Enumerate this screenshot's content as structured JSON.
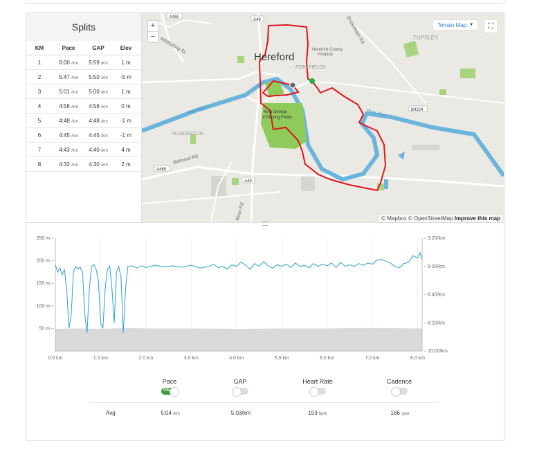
{
  "splits": {
    "title": "Splits",
    "columns": [
      "KM",
      "Pace",
      "GAP",
      "Elev"
    ],
    "rows": [
      {
        "km": "1",
        "pace": "6:00",
        "pace_unit": "/km",
        "gap": "5:59",
        "gap_unit": "/km",
        "elev": "1 m"
      },
      {
        "km": "2",
        "pace": "5:47",
        "pace_unit": "/km",
        "gap": "5:50",
        "gap_unit": "/km",
        "elev": "-5 m"
      },
      {
        "km": "3",
        "pace": "5:01",
        "pace_unit": "/km",
        "gap": "5:00",
        "gap_unit": "/km",
        "elev": "1 m"
      },
      {
        "km": "4",
        "pace": "4:56",
        "pace_unit": "/km",
        "gap": "4:56",
        "gap_unit": "/km",
        "elev": "0 m"
      },
      {
        "km": "5",
        "pace": "4:48",
        "pace_unit": "/km",
        "gap": "4:48",
        "gap_unit": "/km",
        "elev": "-1 m"
      },
      {
        "km": "6",
        "pace": "4:45",
        "pace_unit": "/km",
        "gap": "4:45",
        "gap_unit": "/km",
        "elev": "-1 m"
      },
      {
        "km": "7",
        "pace": "4:43",
        "pace_unit": "/km",
        "gap": "4:40",
        "gap_unit": "/km",
        "elev": "4 m"
      },
      {
        "km": "8",
        "pace": "4:32",
        "pace_unit": "/km",
        "gap": "4:30",
        "gap_unit": "/km",
        "elev": "2 m"
      }
    ]
  },
  "map": {
    "zoom_in": "+",
    "zoom_out": "−",
    "terrain_label": "Terrain Map",
    "attribution_text": "© Mapbox © OpenStreetMap",
    "improve_link": "Improve this map",
    "labels": {
      "hereford": "Hereford",
      "county_hospital_1": "Hereford County",
      "county_hospital_2": "Hospital",
      "portfields": "PORTFIELDS",
      "tupsley": "TUPSLEY",
      "hunderton": "HUNDERTON",
      "king_george_1": "King George",
      "king_george_2": "V Playing Fields",
      "a438": "A438",
      "a49_top": "A49",
      "a49_bottom": "A49",
      "a465": "A465",
      "b4224": "B4224",
      "whitefalling": "Whitfalling St",
      "bodenham": "Bodenham Rd",
      "belmont": "Belmont Rd",
      "ross": "Ross Rd",
      "river_wye_1": "River Wye",
      "river_wye_2": "River Wye"
    },
    "colors": {
      "route": "#e0141b",
      "river": "#6bb5dd",
      "park": "#8fcb5a",
      "start": "#1bb33c"
    }
  },
  "chart_data": {
    "type": "line",
    "xlabel": "",
    "x_ticks": [
      "0.0 km",
      "1.0 km",
      "2.0 km",
      "3.0 km",
      "4.0 km",
      "5.0 km",
      "6.0 km",
      "7.0 km",
      "8.0 km"
    ],
    "xlim": [
      0,
      8.1
    ],
    "elevation_ticks": [
      "250 m",
      "200 m",
      "150 m",
      "100 m",
      "50 m"
    ],
    "elevation_lim": [
      0,
      250
    ],
    "pace_ticks": [
      "3:20/km",
      "5:00/km",
      "6:40/km",
      "8:20/km",
      "10:00/km"
    ],
    "pace_lim_seconds": [
      200,
      600
    ],
    "series": [
      {
        "name": "Pace",
        "color": "#3ba7d6",
        "points": [
          [
            0.0,
            294
          ],
          [
            0.05,
            320
          ],
          [
            0.1,
            305
          ],
          [
            0.15,
            330
          ],
          [
            0.2,
            310
          ],
          [
            0.25,
            380
          ],
          [
            0.3,
            520
          ],
          [
            0.35,
            470
          ],
          [
            0.4,
            320
          ],
          [
            0.45,
            300
          ],
          [
            0.5,
            308
          ],
          [
            0.55,
            303
          ],
          [
            0.6,
            320
          ],
          [
            0.65,
            470
          ],
          [
            0.7,
            535
          ],
          [
            0.75,
            380
          ],
          [
            0.8,
            300
          ],
          [
            0.85,
            293
          ],
          [
            0.9,
            310
          ],
          [
            0.95,
            350
          ],
          [
            1.0,
            500
          ],
          [
            1.05,
            520
          ],
          [
            1.1,
            380
          ],
          [
            1.15,
            310
          ],
          [
            1.2,
            298
          ],
          [
            1.25,
            380
          ],
          [
            1.3,
            500
          ],
          [
            1.35,
            320
          ],
          [
            1.4,
            300
          ],
          [
            1.45,
            340
          ],
          [
            1.5,
            535
          ],
          [
            1.55,
            380
          ],
          [
            1.6,
            300
          ],
          [
            1.7,
            298
          ],
          [
            1.8,
            306
          ],
          [
            1.9,
            298
          ],
          [
            2.0,
            304
          ],
          [
            2.2,
            296
          ],
          [
            2.4,
            302
          ],
          [
            2.6,
            298
          ],
          [
            2.8,
            303
          ],
          [
            3.0,
            296
          ],
          [
            3.2,
            306
          ],
          [
            3.4,
            300
          ],
          [
            3.5,
            292
          ],
          [
            3.6,
            305
          ],
          [
            3.7,
            300
          ],
          [
            3.8,
            310
          ],
          [
            3.9,
            294
          ],
          [
            4.0,
            300
          ],
          [
            4.1,
            285
          ],
          [
            4.2,
            295
          ],
          [
            4.3,
            310
          ],
          [
            4.4,
            290
          ],
          [
            4.5,
            300
          ],
          [
            4.6,
            283
          ],
          [
            4.7,
            298
          ],
          [
            4.8,
            306
          ],
          [
            4.9,
            294
          ],
          [
            5.0,
            300
          ],
          [
            5.1,
            292
          ],
          [
            5.2,
            304
          ],
          [
            5.3,
            288
          ],
          [
            5.4,
            300
          ],
          [
            5.5,
            296
          ],
          [
            5.6,
            305
          ],
          [
            5.7,
            290
          ],
          [
            5.8,
            300
          ],
          [
            5.9,
            292
          ],
          [
            6.0,
            298
          ],
          [
            6.1,
            288
          ],
          [
            6.2,
            304
          ],
          [
            6.3,
            286
          ],
          [
            6.4,
            300
          ],
          [
            6.5,
            294
          ],
          [
            6.6,
            300
          ],
          [
            6.7,
            290
          ],
          [
            6.8,
            296
          ],
          [
            6.9,
            288
          ],
          [
            7.0,
            292
          ],
          [
            7.1,
            278
          ],
          [
            7.2,
            275
          ],
          [
            7.3,
            282
          ],
          [
            7.4,
            288
          ],
          [
            7.5,
            300
          ],
          [
            7.6,
            305
          ],
          [
            7.7,
            290
          ],
          [
            7.8,
            285
          ],
          [
            7.9,
            262
          ],
          [
            8.0,
            270
          ],
          [
            8.05,
            250
          ],
          [
            8.1,
            275
          ]
        ]
      },
      {
        "name": "Elevation",
        "color": "#d9d9d9",
        "points": [
          [
            0,
            49
          ],
          [
            0.5,
            50
          ],
          [
            1.0,
            49
          ],
          [
            1.5,
            51
          ],
          [
            2.0,
            50
          ],
          [
            3.0,
            50
          ],
          [
            4.0,
            49
          ],
          [
            5.0,
            50
          ],
          [
            6.0,
            50
          ],
          [
            7.0,
            51
          ],
          [
            8.0,
            50
          ],
          [
            8.1,
            50
          ]
        ]
      }
    ]
  },
  "toggles": [
    {
      "label": "Pace",
      "state": "on",
      "on_text": "ON"
    },
    {
      "label": "GAP",
      "state": "off"
    },
    {
      "label": "Heart Rate",
      "state": "off"
    },
    {
      "label": "Cadence",
      "state": "off"
    }
  ],
  "averages": {
    "label": "Avg",
    "pace": "5:04",
    "pace_unit": "/km",
    "gap": "5:03/km",
    "heart_rate": "153",
    "heart_rate_unit": "bpm",
    "cadence": "166",
    "cadence_unit": "spm"
  }
}
